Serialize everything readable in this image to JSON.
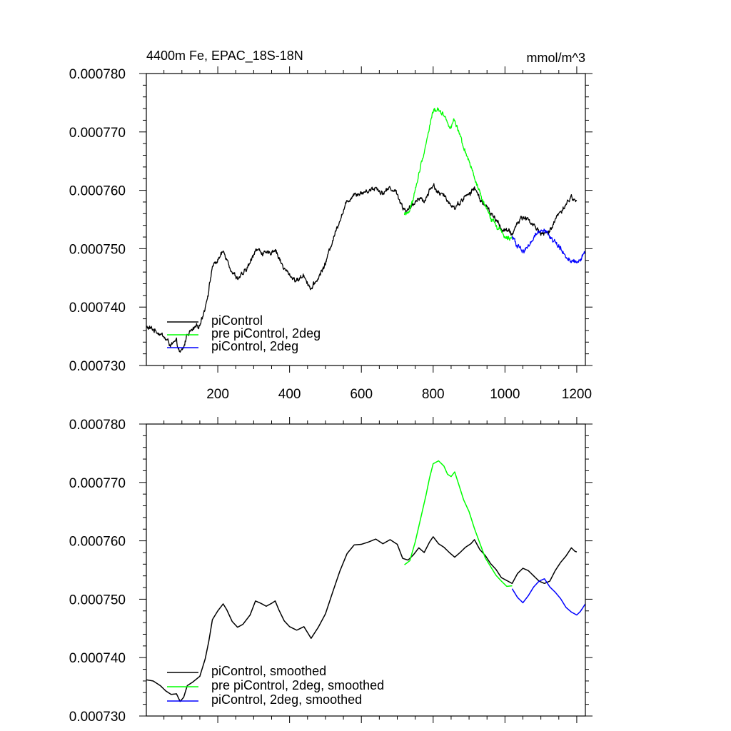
{
  "chart_data": [
    {
      "type": "line",
      "title": "4400m Fe, EPAC_18S-18N",
      "units": "mmol/m^3",
      "xlim": [
        1,
        1224
      ],
      "ylim": [
        0.00073,
        0.00078
      ],
      "x_ticks": [
        200,
        400,
        600,
        800,
        1000,
        1200
      ],
      "x_tick_labels": [
        "200",
        "400",
        "600",
        "800",
        "1000",
        "1200"
      ],
      "y_ticks": [
        0.00073,
        0.00074,
        0.00075,
        0.00076,
        0.00077,
        0.00078
      ],
      "y_tick_labels": [
        "0.000730",
        "0.000740",
        "0.000750",
        "0.000760",
        "0.000770",
        "0.000780"
      ],
      "legend_position": "bottom-left",
      "series": [
        {
          "name": "piControl",
          "color": "#000000",
          "noisy": true,
          "points": [
            [
              1,
              0.0007365
            ],
            [
              20,
              0.0007362
            ],
            [
              40,
              0.0007355
            ],
            [
              55,
              0.0007345
            ],
            [
              70,
              0.0007335
            ],
            [
              85,
              0.000734
            ],
            [
              95,
              0.000732
            ],
            [
              105,
              0.000733
            ],
            [
              115,
              0.0007355
            ],
            [
              130,
              0.000736
            ],
            [
              150,
              0.000737
            ],
            [
              165,
              0.00074
            ],
            [
              175,
              0.000743
            ],
            [
              185,
              0.000747
            ],
            [
              200,
              0.000748
            ],
            [
              215,
              0.0007495
            ],
            [
              225,
              0.0007485
            ],
            [
              240,
              0.000746
            ],
            [
              255,
              0.000745
            ],
            [
              270,
              0.0007455
            ],
            [
              290,
              0.0007475
            ],
            [
              305,
              0.00075
            ],
            [
              320,
              0.0007495
            ],
            [
              335,
              0.000749
            ],
            [
              350,
              0.0007495
            ],
            [
              360,
              0.00075
            ],
            [
              370,
              0.0007485
            ],
            [
              385,
              0.0007465
            ],
            [
              400,
              0.0007455
            ],
            [
              420,
              0.0007445
            ],
            [
              440,
              0.0007455
            ],
            [
              460,
              0.000743
            ],
            [
              480,
              0.000745
            ],
            [
              500,
              0.0007475
            ],
            [
              520,
              0.0007515
            ],
            [
              540,
              0.000755
            ],
            [
              560,
              0.000758
            ],
            [
              580,
              0.0007595
            ],
            [
              600,
              0.0007595
            ],
            [
              620,
              0.00076
            ],
            [
              640,
              0.0007605
            ],
            [
              660,
              0.0007595
            ],
            [
              680,
              0.0007605
            ],
            [
              700,
              0.0007595
            ],
            [
              715,
              0.000757
            ],
            [
              730,
              0.0007565
            ],
            [
              745,
              0.0007575
            ],
            [
              760,
              0.000759
            ],
            [
              775,
              0.000758
            ],
            [
              790,
              0.00076
            ],
            [
              800,
              0.000761
            ],
            [
              815,
              0.0007595
            ],
            [
              830,
              0.000759
            ],
            [
              845,
              0.000758
            ],
            [
              860,
              0.000757
            ],
            [
              875,
              0.000758
            ],
            [
              890,
              0.000759
            ],
            [
              905,
              0.0007595
            ],
            [
              915,
              0.0007605
            ],
            [
              930,
              0.0007585
            ],
            [
              945,
              0.0007575
            ],
            [
              960,
              0.000756
            ],
            [
              975,
              0.000755
            ],
            [
              990,
              0.0007535
            ],
            [
              1005,
              0.000753
            ],
            [
              1020,
              0.0007525
            ],
            [
              1035,
              0.0007545
            ],
            [
              1050,
              0.0007555
            ],
            [
              1065,
              0.000755
            ],
            [
              1080,
              0.000754
            ],
            [
              1095,
              0.000753
            ],
            [
              1110,
              0.0007525
            ],
            [
              1125,
              0.000753
            ],
            [
              1140,
              0.000755
            ],
            [
              1155,
              0.0007565
            ],
            [
              1170,
              0.0007575
            ],
            [
              1185,
              0.000759
            ],
            [
              1195,
              0.000758
            ],
            [
              1200,
              0.0007582
            ]
          ]
        },
        {
          "name": "pre piControl, 2deg",
          "color": "#00ff00",
          "noisy": true,
          "points": [
            [
              720,
              0.0007558
            ],
            [
              735,
              0.0007565
            ],
            [
              750,
              0.00076
            ],
            [
              765,
              0.000764
            ],
            [
              780,
              0.000768
            ],
            [
              790,
              0.000771
            ],
            [
              800,
              0.0007735
            ],
            [
              815,
              0.000774
            ],
            [
              830,
              0.000773
            ],
            [
              840,
              0.0007715
            ],
            [
              850,
              0.000771
            ],
            [
              860,
              0.000772
            ],
            [
              870,
              0.00077
            ],
            [
              885,
              0.000767
            ],
            [
              900,
              0.000765
            ],
            [
              915,
              0.000762
            ],
            [
              930,
              0.0007595
            ],
            [
              945,
              0.000757
            ],
            [
              960,
              0.0007555
            ],
            [
              975,
              0.000754
            ],
            [
              990,
              0.000753
            ],
            [
              1005,
              0.000752
            ],
            [
              1020,
              0.0007522
            ]
          ]
        },
        {
          "name": "piControl, 2deg",
          "color": "#0000ff",
          "noisy": true,
          "points": [
            [
              1020,
              0.000752
            ],
            [
              1035,
              0.0007505
            ],
            [
              1050,
              0.0007495
            ],
            [
              1065,
              0.0007505
            ],
            [
              1080,
              0.000752
            ],
            [
              1095,
              0.000753
            ],
            [
              1110,
              0.0007535
            ],
            [
              1125,
              0.000752
            ],
            [
              1140,
              0.000751
            ],
            [
              1155,
              0.00075
            ],
            [
              1170,
              0.0007485
            ],
            [
              1185,
              0.000748
            ],
            [
              1200,
              0.0007475
            ],
            [
              1210,
              0.000748
            ],
            [
              1224,
              0.0007495
            ]
          ]
        }
      ]
    },
    {
      "type": "line",
      "title": "",
      "xlim": [
        1,
        1224
      ],
      "ylim": [
        0.00073,
        0.00078
      ],
      "x_ticks": [
        200,
        400,
        600,
        800,
        1000,
        1200
      ],
      "y_ticks": [
        0.00073,
        0.00074,
        0.00075,
        0.00076,
        0.00077,
        0.00078
      ],
      "y_tick_labels": [
        "0.000730",
        "0.000740",
        "0.000750",
        "0.000760",
        "0.000770",
        "0.000780"
      ],
      "legend_position": "bottom-left",
      "series": [
        {
          "name": "piControl, smoothed",
          "color": "#000000",
          "noisy": false,
          "points": [
            [
              1,
              0.0007362
            ],
            [
              20,
              0.000736
            ],
            [
              40,
              0.0007352
            ],
            [
              55,
              0.0007343
            ],
            [
              70,
              0.0007337
            ],
            [
              85,
              0.0007338
            ],
            [
              95,
              0.0007325
            ],
            [
              105,
              0.0007332
            ],
            [
              115,
              0.0007352
            ],
            [
              130,
              0.0007358
            ],
            [
              150,
              0.0007368
            ],
            [
              165,
              0.0007398
            ],
            [
              175,
              0.0007428
            ],
            [
              185,
              0.0007465
            ],
            [
              200,
              0.000748
            ],
            [
              215,
              0.0007492
            ],
            [
              225,
              0.0007482
            ],
            [
              240,
              0.0007462
            ],
            [
              255,
              0.0007452
            ],
            [
              270,
              0.0007457
            ],
            [
              290,
              0.0007473
            ],
            [
              305,
              0.0007497
            ],
            [
              320,
              0.0007493
            ],
            [
              335,
              0.0007488
            ],
            [
              350,
              0.0007493
            ],
            [
              360,
              0.0007497
            ],
            [
              370,
              0.0007482
            ],
            [
              385,
              0.0007463
            ],
            [
              400,
              0.0007453
            ],
            [
              420,
              0.0007447
            ],
            [
              440,
              0.0007453
            ],
            [
              460,
              0.0007433
            ],
            [
              480,
              0.0007452
            ],
            [
              500,
              0.0007475
            ],
            [
              520,
              0.0007512
            ],
            [
              540,
              0.0007548
            ],
            [
              560,
              0.0007578
            ],
            [
              580,
              0.0007593
            ],
            [
              600,
              0.0007594
            ],
            [
              620,
              0.0007598
            ],
            [
              640,
              0.0007603
            ],
            [
              660,
              0.0007595
            ],
            [
              680,
              0.0007602
            ],
            [
              700,
              0.0007594
            ],
            [
              715,
              0.000757
            ],
            [
              730,
              0.0007567
            ],
            [
              745,
              0.0007576
            ],
            [
              760,
              0.0007588
            ],
            [
              775,
              0.000758
            ],
            [
              790,
              0.0007598
            ],
            [
              800,
              0.0007607
            ],
            [
              815,
              0.0007595
            ],
            [
              830,
              0.0007589
            ],
            [
              845,
              0.000758
            ],
            [
              860,
              0.0007572
            ],
            [
              875,
              0.000758
            ],
            [
              890,
              0.0007589
            ],
            [
              905,
              0.0007595
            ],
            [
              915,
              0.0007602
            ],
            [
              930,
              0.0007585
            ],
            [
              945,
              0.0007575
            ],
            [
              960,
              0.0007561
            ],
            [
              975,
              0.0007551
            ],
            [
              990,
              0.0007537
            ],
            [
              1005,
              0.0007532
            ],
            [
              1020,
              0.0007527
            ],
            [
              1035,
              0.0007544
            ],
            [
              1050,
              0.0007553
            ],
            [
              1065,
              0.0007549
            ],
            [
              1080,
              0.000754
            ],
            [
              1095,
              0.0007531
            ],
            [
              1110,
              0.0007527
            ],
            [
              1125,
              0.0007531
            ],
            [
              1140,
              0.0007549
            ],
            [
              1155,
              0.0007563
            ],
            [
              1170,
              0.0007574
            ],
            [
              1185,
              0.0007588
            ],
            [
              1195,
              0.0007582
            ],
            [
              1200,
              0.0007581
            ]
          ]
        },
        {
          "name": "pre piControl, 2deg, smoothed",
          "color": "#00ff00",
          "noisy": false,
          "points": [
            [
              720,
              0.0007559
            ],
            [
              735,
              0.0007566
            ],
            [
              750,
              0.0007598
            ],
            [
              765,
              0.0007638
            ],
            [
              780,
              0.0007678
            ],
            [
              790,
              0.0007708
            ],
            [
              800,
              0.0007732
            ],
            [
              815,
              0.0007737
            ],
            [
              830,
              0.0007728
            ],
            [
              840,
              0.0007714
            ],
            [
              850,
              0.000771
            ],
            [
              860,
              0.0007718
            ],
            [
              870,
              0.0007699
            ],
            [
              885,
              0.000767
            ],
            [
              900,
              0.000765
            ],
            [
              915,
              0.0007621
            ],
            [
              930,
              0.0007596
            ],
            [
              945,
              0.0007571
            ],
            [
              960,
              0.0007556
            ],
            [
              975,
              0.0007541
            ],
            [
              990,
              0.0007531
            ],
            [
              1005,
              0.0007522
            ],
            [
              1020,
              0.0007523
            ]
          ]
        },
        {
          "name": "piControl, 2deg, smoothed",
          "color": "#0000ff",
          "noisy": false,
          "points": [
            [
              1020,
              0.0007518
            ],
            [
              1035,
              0.0007503
            ],
            [
              1050,
              0.0007494
            ],
            [
              1065,
              0.0007506
            ],
            [
              1080,
              0.0007521
            ],
            [
              1095,
              0.0007531
            ],
            [
              1110,
              0.0007535
            ],
            [
              1125,
              0.0007521
            ],
            [
              1140,
              0.0007512
            ],
            [
              1155,
              0.0007501
            ],
            [
              1170,
              0.0007486
            ],
            [
              1185,
              0.0007478
            ],
            [
              1200,
              0.0007473
            ],
            [
              1210,
              0.0007479
            ],
            [
              1224,
              0.0007492
            ]
          ]
        }
      ]
    }
  ]
}
